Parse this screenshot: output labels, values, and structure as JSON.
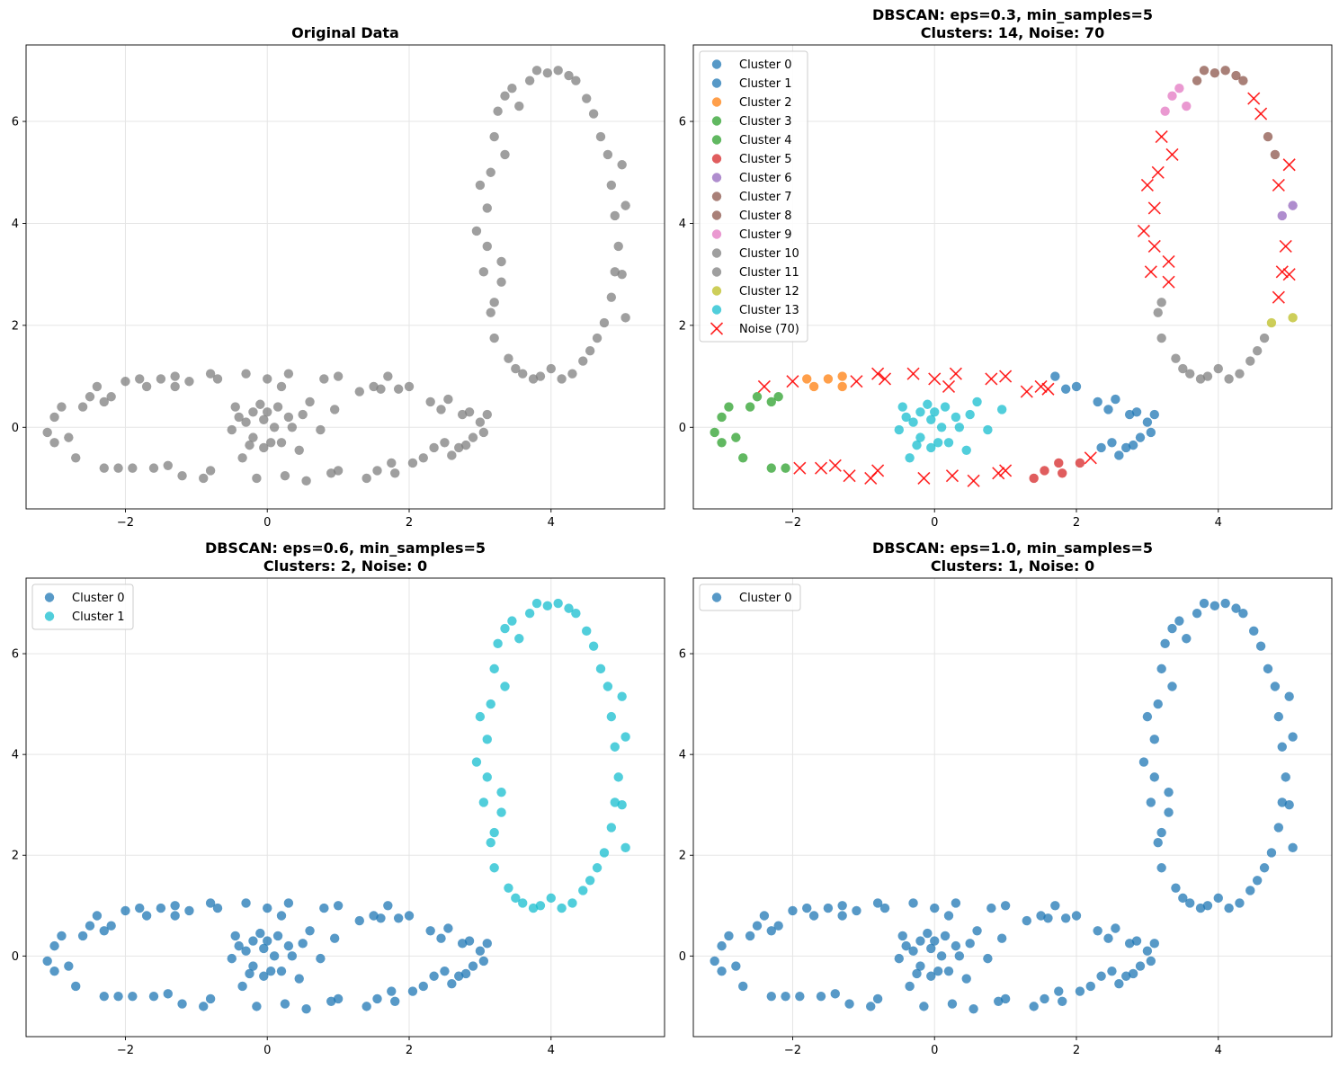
{
  "chart_data": [
    {
      "type": "scatter",
      "title": "Original Data",
      "title_lines": [
        "Original Data"
      ],
      "xlim": [
        -3.4,
        5.6
      ],
      "ylim": [
        -1.6,
        7.5
      ],
      "xticks": [
        -2,
        0,
        2,
        4
      ],
      "yticks": [
        0,
        2,
        4,
        6
      ],
      "tick_labels_x": [
        "−2",
        "0",
        "2",
        "4"
      ],
      "tick_labels_y": [
        "0",
        "2",
        "4",
        "6"
      ],
      "grid": true,
      "legend": null,
      "color_scheme": "all_gray"
    },
    {
      "type": "scatter",
      "title": "DBSCAN: eps=0.3, min_samples=5 Clusters: 14, Noise: 70",
      "title_lines": [
        "DBSCAN: eps=0.3, min_samples=5",
        "Clusters: 14, Noise: 70"
      ],
      "xlim": [
        -3.4,
        5.6
      ],
      "ylim": [
        -1.6,
        7.5
      ],
      "xticks": [
        -2,
        0,
        2,
        4
      ],
      "yticks": [
        0,
        2,
        4,
        6
      ],
      "tick_labels_x": [
        "−2",
        "0",
        "2",
        "4"
      ],
      "tick_labels_y": [
        "0",
        "2",
        "4",
        "6"
      ],
      "grid": true,
      "legend": {
        "placement": "upper-left",
        "entries": [
          {
            "label": "Cluster 0",
            "color": "#1f77b4",
            "marker": "circle"
          },
          {
            "label": "Cluster 1",
            "color": "#1f77b4",
            "marker": "circle"
          },
          {
            "label": "Cluster 2",
            "color": "#ff7f0e",
            "marker": "circle"
          },
          {
            "label": "Cluster 3",
            "color": "#2ca02c",
            "marker": "circle"
          },
          {
            "label": "Cluster 4",
            "color": "#2ca02c",
            "marker": "circle"
          },
          {
            "label": "Cluster 5",
            "color": "#d62728",
            "marker": "circle"
          },
          {
            "label": "Cluster 6",
            "color": "#9467bd",
            "marker": "circle"
          },
          {
            "label": "Cluster 7",
            "color": "#8c564b",
            "marker": "circle"
          },
          {
            "label": "Cluster 8",
            "color": "#8c564b",
            "marker": "circle"
          },
          {
            "label": "Cluster 9",
            "color": "#e377c2",
            "marker": "circle"
          },
          {
            "label": "Cluster 10",
            "color": "#7f7f7f",
            "marker": "circle"
          },
          {
            "label": "Cluster 11",
            "color": "#7f7f7f",
            "marker": "circle"
          },
          {
            "label": "Cluster 12",
            "color": "#bcbd22",
            "marker": "circle"
          },
          {
            "label": "Cluster 13",
            "color": "#17becf",
            "marker": "circle"
          },
          {
            "label": "Noise (70)",
            "color": "#ff0000",
            "marker": "x"
          }
        ]
      },
      "color_scheme": "eps03"
    },
    {
      "type": "scatter",
      "title": "DBSCAN: eps=0.6, min_samples=5 Clusters: 2, Noise: 0",
      "title_lines": [
        "DBSCAN: eps=0.6, min_samples=5",
        "Clusters: 2, Noise: 0"
      ],
      "xlim": [
        -3.4,
        5.6
      ],
      "ylim": [
        -1.6,
        7.5
      ],
      "xticks": [
        -2,
        0,
        2,
        4
      ],
      "yticks": [
        0,
        2,
        4,
        6
      ],
      "tick_labels_x": [
        "−2",
        "0",
        "2",
        "4"
      ],
      "tick_labels_y": [
        "0",
        "2",
        "4",
        "6"
      ],
      "grid": true,
      "legend": {
        "placement": "upper-left",
        "entries": [
          {
            "label": "Cluster 0",
            "color": "#1f77b4",
            "marker": "circle"
          },
          {
            "label": "Cluster 1",
            "color": "#17becf",
            "marker": "circle"
          }
        ]
      },
      "color_scheme": "eps06"
    },
    {
      "type": "scatter",
      "title": "DBSCAN: eps=1.0, min_samples=5 Clusters: 1, Noise: 0",
      "title_lines": [
        "DBSCAN: eps=1.0, min_samples=5",
        "Clusters: 1, Noise: 0"
      ],
      "xlim": [
        -3.4,
        5.6
      ],
      "ylim": [
        -1.6,
        7.5
      ],
      "xticks": [
        -2,
        0,
        2,
        4
      ],
      "yticks": [
        0,
        2,
        4,
        6
      ],
      "tick_labels_x": [
        "−2",
        "0",
        "2",
        "4"
      ],
      "tick_labels_y": [
        "0",
        "2",
        "4",
        "6"
      ],
      "grid": true,
      "legend": {
        "placement": "upper-left",
        "entries": [
          {
            "label": "Cluster 0",
            "color": "#1f77b4",
            "marker": "circle"
          }
        ]
      },
      "color_scheme": "all_blue"
    }
  ],
  "dataset": {
    "description_of_shapes": [
      "left horizontal ring",
      "middle horizontal ring",
      "right horizontal ring",
      "vertical ellipse"
    ],
    "left_ring": [
      [
        -3.1,
        -0.1
      ],
      [
        -3.0,
        0.2
      ],
      [
        -3.0,
        -0.3
      ],
      [
        -2.9,
        0.4
      ],
      [
        -2.8,
        -0.2
      ],
      [
        -2.7,
        -0.6
      ],
      [
        -2.6,
        0.4
      ],
      [
        -2.5,
        0.6
      ],
      [
        -2.4,
        0.8
      ],
      [
        -2.3,
        0.5
      ],
      [
        -2.3,
        -0.8
      ],
      [
        -2.2,
        0.6
      ],
      [
        -2.1,
        -0.8
      ],
      [
        -2.0,
        0.9
      ],
      [
        -1.9,
        -0.8
      ],
      [
        -1.8,
        0.95
      ],
      [
        -1.7,
        0.8
      ],
      [
        -1.6,
        -0.8
      ],
      [
        -1.5,
        0.95
      ],
      [
        -1.4,
        -0.75
      ],
      [
        -1.3,
        0.8
      ],
      [
        -1.3,
        1.0
      ],
      [
        -1.2,
        -0.95
      ],
      [
        -1.1,
        0.9
      ],
      [
        -0.9,
        -1.0
      ],
      [
        -0.8,
        1.05
      ],
      [
        -0.8,
        -0.85
      ],
      [
        -0.7,
        0.95
      ]
    ],
    "middle_ring": [
      [
        -0.5,
        -0.05
      ],
      [
        -0.45,
        0.4
      ],
      [
        -0.4,
        0.2
      ],
      [
        -0.35,
        -0.6
      ],
      [
        -0.3,
        1.05
      ],
      [
        -0.3,
        0.1
      ],
      [
        -0.25,
        -0.35
      ],
      [
        -0.2,
        -0.2
      ],
      [
        -0.2,
        0.3
      ],
      [
        -0.15,
        -1.0
      ],
      [
        -0.1,
        0.45
      ],
      [
        -0.05,
        0.15
      ],
      [
        -0.05,
        -0.4
      ],
      [
        0.0,
        0.3
      ],
      [
        0.0,
        0.95
      ],
      [
        0.05,
        -0.3
      ],
      [
        0.1,
        0.0
      ],
      [
        0.15,
        0.4
      ],
      [
        0.2,
        -0.3
      ],
      [
        0.2,
        0.8
      ],
      [
        0.25,
        -0.95
      ],
      [
        0.3,
        1.05
      ],
      [
        0.3,
        0.2
      ],
      [
        0.35,
        0.0
      ],
      [
        0.45,
        -0.45
      ],
      [
        0.5,
        0.25
      ],
      [
        0.55,
        -1.05
      ],
      [
        0.6,
        0.5
      ],
      [
        0.75,
        -0.05
      ],
      [
        0.8,
        0.95
      ],
      [
        0.9,
        -0.9
      ],
      [
        0.95,
        0.35
      ],
      [
        1.0,
        1.0
      ],
      [
        1.0,
        -0.85
      ]
    ],
    "right_ring": [
      [
        1.3,
        0.7
      ],
      [
        1.4,
        -1.0
      ],
      [
        1.5,
        0.8
      ],
      [
        1.55,
        -0.85
      ],
      [
        1.6,
        0.75
      ],
      [
        1.7,
        1.0
      ],
      [
        1.75,
        -0.7
      ],
      [
        1.8,
        -0.9
      ],
      [
        1.85,
        0.75
      ],
      [
        2.0,
        0.8
      ],
      [
        2.05,
        -0.7
      ],
      [
        2.2,
        -0.6
      ],
      [
        2.3,
        0.5
      ],
      [
        2.35,
        -0.4
      ],
      [
        2.45,
        0.35
      ],
      [
        2.5,
        -0.3
      ],
      [
        2.55,
        0.55
      ],
      [
        2.6,
        -0.55
      ],
      [
        2.7,
        -0.4
      ],
      [
        2.75,
        0.25
      ],
      [
        2.8,
        -0.35
      ],
      [
        2.85,
        0.3
      ],
      [
        2.9,
        -0.2
      ],
      [
        3.0,
        0.1
      ],
      [
        3.05,
        -0.1
      ],
      [
        3.1,
        0.25
      ]
    ],
    "ellipse": [
      [
        2.95,
        3.85
      ],
      [
        3.0,
        4.75
      ],
      [
        3.05,
        3.05
      ],
      [
        3.1,
        3.55
      ],
      [
        3.1,
        4.3
      ],
      [
        3.15,
        5.0
      ],
      [
        3.15,
        2.25
      ],
      [
        3.2,
        5.7
      ],
      [
        3.2,
        2.45
      ],
      [
        3.2,
        1.75
      ],
      [
        3.25,
        6.2
      ],
      [
        3.3,
        3.25
      ],
      [
        3.3,
        2.85
      ],
      [
        3.35,
        6.5
      ],
      [
        3.35,
        5.35
      ],
      [
        3.4,
        1.35
      ],
      [
        3.45,
        6.65
      ],
      [
        3.5,
        1.15
      ],
      [
        3.55,
        6.3
      ],
      [
        3.6,
        1.05
      ],
      [
        3.7,
        6.8
      ],
      [
        3.75,
        0.95
      ],
      [
        3.8,
        7.0
      ],
      [
        3.85,
        1.0
      ],
      [
        3.95,
        6.95
      ],
      [
        4.0,
        1.15
      ],
      [
        4.1,
        7.0
      ],
      [
        4.15,
        0.95
      ],
      [
        4.25,
        6.9
      ],
      [
        4.3,
        1.05
      ],
      [
        4.35,
        6.8
      ],
      [
        4.45,
        1.3
      ],
      [
        4.5,
        6.45
      ],
      [
        4.55,
        1.5
      ],
      [
        4.6,
        6.15
      ],
      [
        4.65,
        1.75
      ],
      [
        4.7,
        5.7
      ],
      [
        4.75,
        2.05
      ],
      [
        4.8,
        5.35
      ],
      [
        4.85,
        2.55
      ],
      [
        4.85,
        4.75
      ],
      [
        4.9,
        3.05
      ],
      [
        4.9,
        4.15
      ],
      [
        4.95,
        3.55
      ],
      [
        5.0,
        5.15
      ],
      [
        5.0,
        3.0
      ],
      [
        5.05,
        4.35
      ],
      [
        5.05,
        2.15
      ]
    ]
  },
  "colors": {
    "gray": "#7f7f7f",
    "blue": "#1f77b4",
    "cyan": "#17becf",
    "orange": "#ff7f0e",
    "green": "#2ca02c",
    "red": "#d62728",
    "purple": "#9467bd",
    "brown": "#8c564b",
    "pink": "#e377c2",
    "olive": "#bcbd22",
    "noise": "#ff0000",
    "grid": "#e5e5e5"
  }
}
